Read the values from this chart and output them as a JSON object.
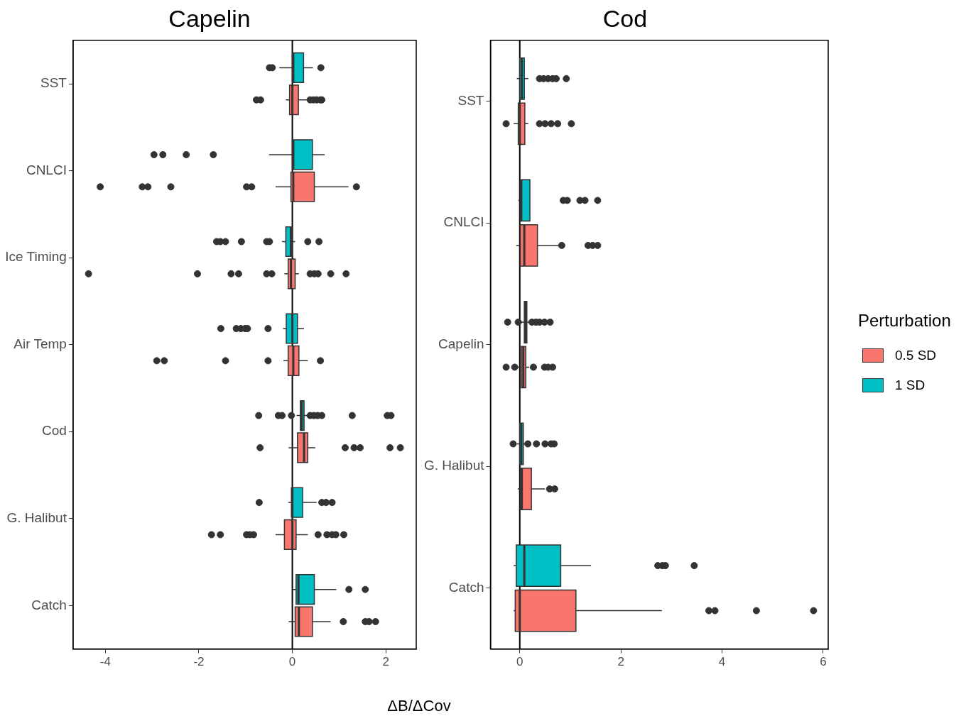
{
  "chart_data": [
    {
      "type": "box",
      "title": "Capelin",
      "orientation": "horizontal",
      "categories": [
        "SST",
        "CNLCI",
        "Ice Timing",
        "Air Temp",
        "Cod",
        "G. Halibut",
        "Catch"
      ],
      "xlim": [
        -4.69,
        2.65
      ],
      "xticks": [
        -4,
        -2,
        0,
        2
      ],
      "grid": false,
      "legend": "right",
      "legend_title": "Perturbation",
      "ref_lines": [
        {
          "axis": "x",
          "value": 0,
          "color": "#000000"
        }
      ],
      "series": [
        {
          "name": "0.5 SD",
          "color": "#f8766d",
          "boxes": [
            {
              "low": -0.14,
              "q1": -0.06,
              "median": 0,
              "q3": 0.13,
              "high": 0.31,
              "outliers": [
                -0.77,
                -0.68,
                0.38,
                0.45,
                0.52,
                0.6,
                0.63
              ]
            },
            {
              "low": -0.36,
              "q1": -0.03,
              "median": 0.02,
              "q3": 0.47,
              "high": 1.2,
              "outliers": [
                -4.11,
                -3.21,
                -3.09,
                -2.6,
                -0.98,
                -0.87,
                1.37
              ]
            },
            {
              "low": -0.17,
              "q1": -0.09,
              "median": -0.03,
              "q3": 0.06,
              "high": 0.14,
              "outliers": [
                -4.36,
                -2.03,
                -1.31,
                -1.15,
                -0.55,
                -0.44,
                0.38,
                0.47,
                0.55,
                0.82,
                1.15
              ]
            },
            {
              "low": -0.19,
              "q1": -0.09,
              "median": 0.02,
              "q3": 0.14,
              "high": 0.33,
              "outliers": [
                -2.9,
                -2.74,
                -1.43,
                -0.52,
                0.6
              ]
            },
            {
              "low": -0.08,
              "q1": 0.11,
              "median": 0.25,
              "q3": 0.33,
              "high": 0.49,
              "outliers": [
                -0.69,
                1.13,
                1.32,
                1.45,
                2.09,
                2.31
              ]
            },
            {
              "low": -0.36,
              "q1": -0.17,
              "median": 0,
              "q3": 0.08,
              "high": 0.33,
              "outliers": [
                -1.73,
                -1.54,
                -0.98,
                -0.91,
                -0.83,
                0.55,
                0.74,
                0.85,
                0.93,
                1.1
              ]
            },
            {
              "low": -0.08,
              "q1": 0.06,
              "median": 0.14,
              "q3": 0.43,
              "high": 0.82,
              "outliers": [
                1.09,
                1.56,
                1.64,
                1.78
              ]
            }
          ]
        },
        {
          "name": "1 SD",
          "color": "#00bfc4",
          "boxes": [
            {
              "low": -0.28,
              "q1": 0,
              "median": 0.02,
              "q3": 0.24,
              "high": 0.44,
              "outliers": [
                -0.49,
                -0.43,
                0.61
              ]
            },
            {
              "low": -0.5,
              "q1": 0,
              "median": 0.02,
              "q3": 0.43,
              "high": 0.69,
              "outliers": [
                -2.96,
                -2.77,
                -2.27,
                -1.69
              ]
            },
            {
              "low": -0.22,
              "q1": -0.14,
              "median": -0.03,
              "q3": 0,
              "high": 0.06,
              "outliers": [
                -1.62,
                -1.54,
                -1.43,
                -1.09,
                -0.55,
                -0.49,
                0.33,
                0.57
              ]
            },
            {
              "low": -0.2,
              "q1": -0.13,
              "median": 0,
              "q3": 0.11,
              "high": 0.25,
              "outliers": [
                -1.53,
                -1.2,
                -1.1,
                -1.01,
                -0.96,
                -0.52
              ]
            },
            {
              "low": 0.09,
              "q1": 0.17,
              "median": 0.2,
              "q3": 0.25,
              "high": 0.31,
              "outliers": [
                -0.72,
                -0.3,
                -0.22,
                -0.02,
                0.38,
                0.46,
                0.54,
                0.63,
                1.28,
                2.03,
                2.11
              ]
            },
            {
              "low": -0.09,
              "q1": -0.02,
              "median": 0,
              "q3": 0.22,
              "high": 0.52,
              "outliers": [
                -0.71,
                0.63,
                0.72,
                0.85
              ]
            },
            {
              "low": 0,
              "q1": 0.08,
              "median": 0.13,
              "q3": 0.47,
              "high": 0.94,
              "outliers": [
                1.21,
                1.56
              ]
            }
          ]
        }
      ]
    },
    {
      "type": "box",
      "title": "Cod",
      "xlabel": "ΔB/ΔCov",
      "orientation": "horizontal",
      "categories": [
        "SST",
        "CNLCI",
        "Capelin",
        "G. Halibut",
        "Catch"
      ],
      "xlim": [
        -0.58,
        6.1
      ],
      "xticks": [
        0,
        2,
        4,
        6
      ],
      "grid": false,
      "ref_lines": [
        {
          "axis": "x",
          "value": 0,
          "color": "#000000"
        }
      ],
      "series": [
        {
          "color": "#f8766d",
          "boxes": [
            {
              "low": -0.12,
              "q1": -0.03,
              "median": 0,
              "q3": 0.1,
              "high": 0.17,
              "outliers": [
                -0.27,
                0.39,
                0.5,
                0.62,
                0.75,
                1.02
              ]
            },
            {
              "low": -0.07,
              "q1": 0.01,
              "median": 0.09,
              "q3": 0.35,
              "high": 0.79,
              "outliers": [
                0.83,
                1.35,
                1.44,
                1.54
              ]
            },
            {
              "low": -0.07,
              "q1": 0.03,
              "median": 0.07,
              "q3": 0.12,
              "high": 0.19,
              "outliers": [
                -0.27,
                -0.1,
                0.27,
                0.49,
                0.56,
                0.65
              ]
            },
            {
              "low": -0.04,
              "q1": 0.01,
              "median": 0.04,
              "q3": 0.23,
              "high": 0.5,
              "outliers": [
                0.59,
                0.69
              ]
            },
            {
              "low": -0.12,
              "q1": -0.09,
              "median": 0,
              "q3": 1.11,
              "high": 2.81,
              "outliers": [
                3.74,
                3.86,
                4.68,
                5.81
              ]
            }
          ]
        },
        {
          "color": "#00bfc4",
          "boxes": [
            {
              "low": -0.06,
              "q1": 0,
              "median": 0.04,
              "q3": 0.09,
              "high": 0.17,
              "outliers": [
                0.39,
                0.47,
                0.56,
                0.65,
                0.72,
                0.92
              ]
            },
            {
              "low": -0.03,
              "q1": 0.01,
              "median": 0.03,
              "q3": 0.2,
              "high": 0.2,
              "outliers": [
                0.86,
                0.94,
                1.19,
                1.29,
                1.54
              ]
            },
            {
              "low": 0.01,
              "q1": 0.09,
              "median": 0.12,
              "q3": 0.14,
              "high": 0.22,
              "outliers": [
                -0.24,
                -0.03,
                0.24,
                0.32,
                0.39,
                0.49,
                0.6
              ]
            },
            {
              "low": -0.06,
              "q1": 0,
              "median": 0.03,
              "q3": 0.07,
              "high": 0.13,
              "outliers": [
                -0.13,
                0.16,
                0.33,
                0.5,
                0.62,
                0.68
              ]
            },
            {
              "low": -0.12,
              "q1": -0.07,
              "median": 0.09,
              "q3": 0.81,
              "high": 1.41,
              "outliers": [
                2.73,
                2.82,
                2.88,
                3.45
              ]
            }
          ]
        }
      ]
    }
  ]
}
